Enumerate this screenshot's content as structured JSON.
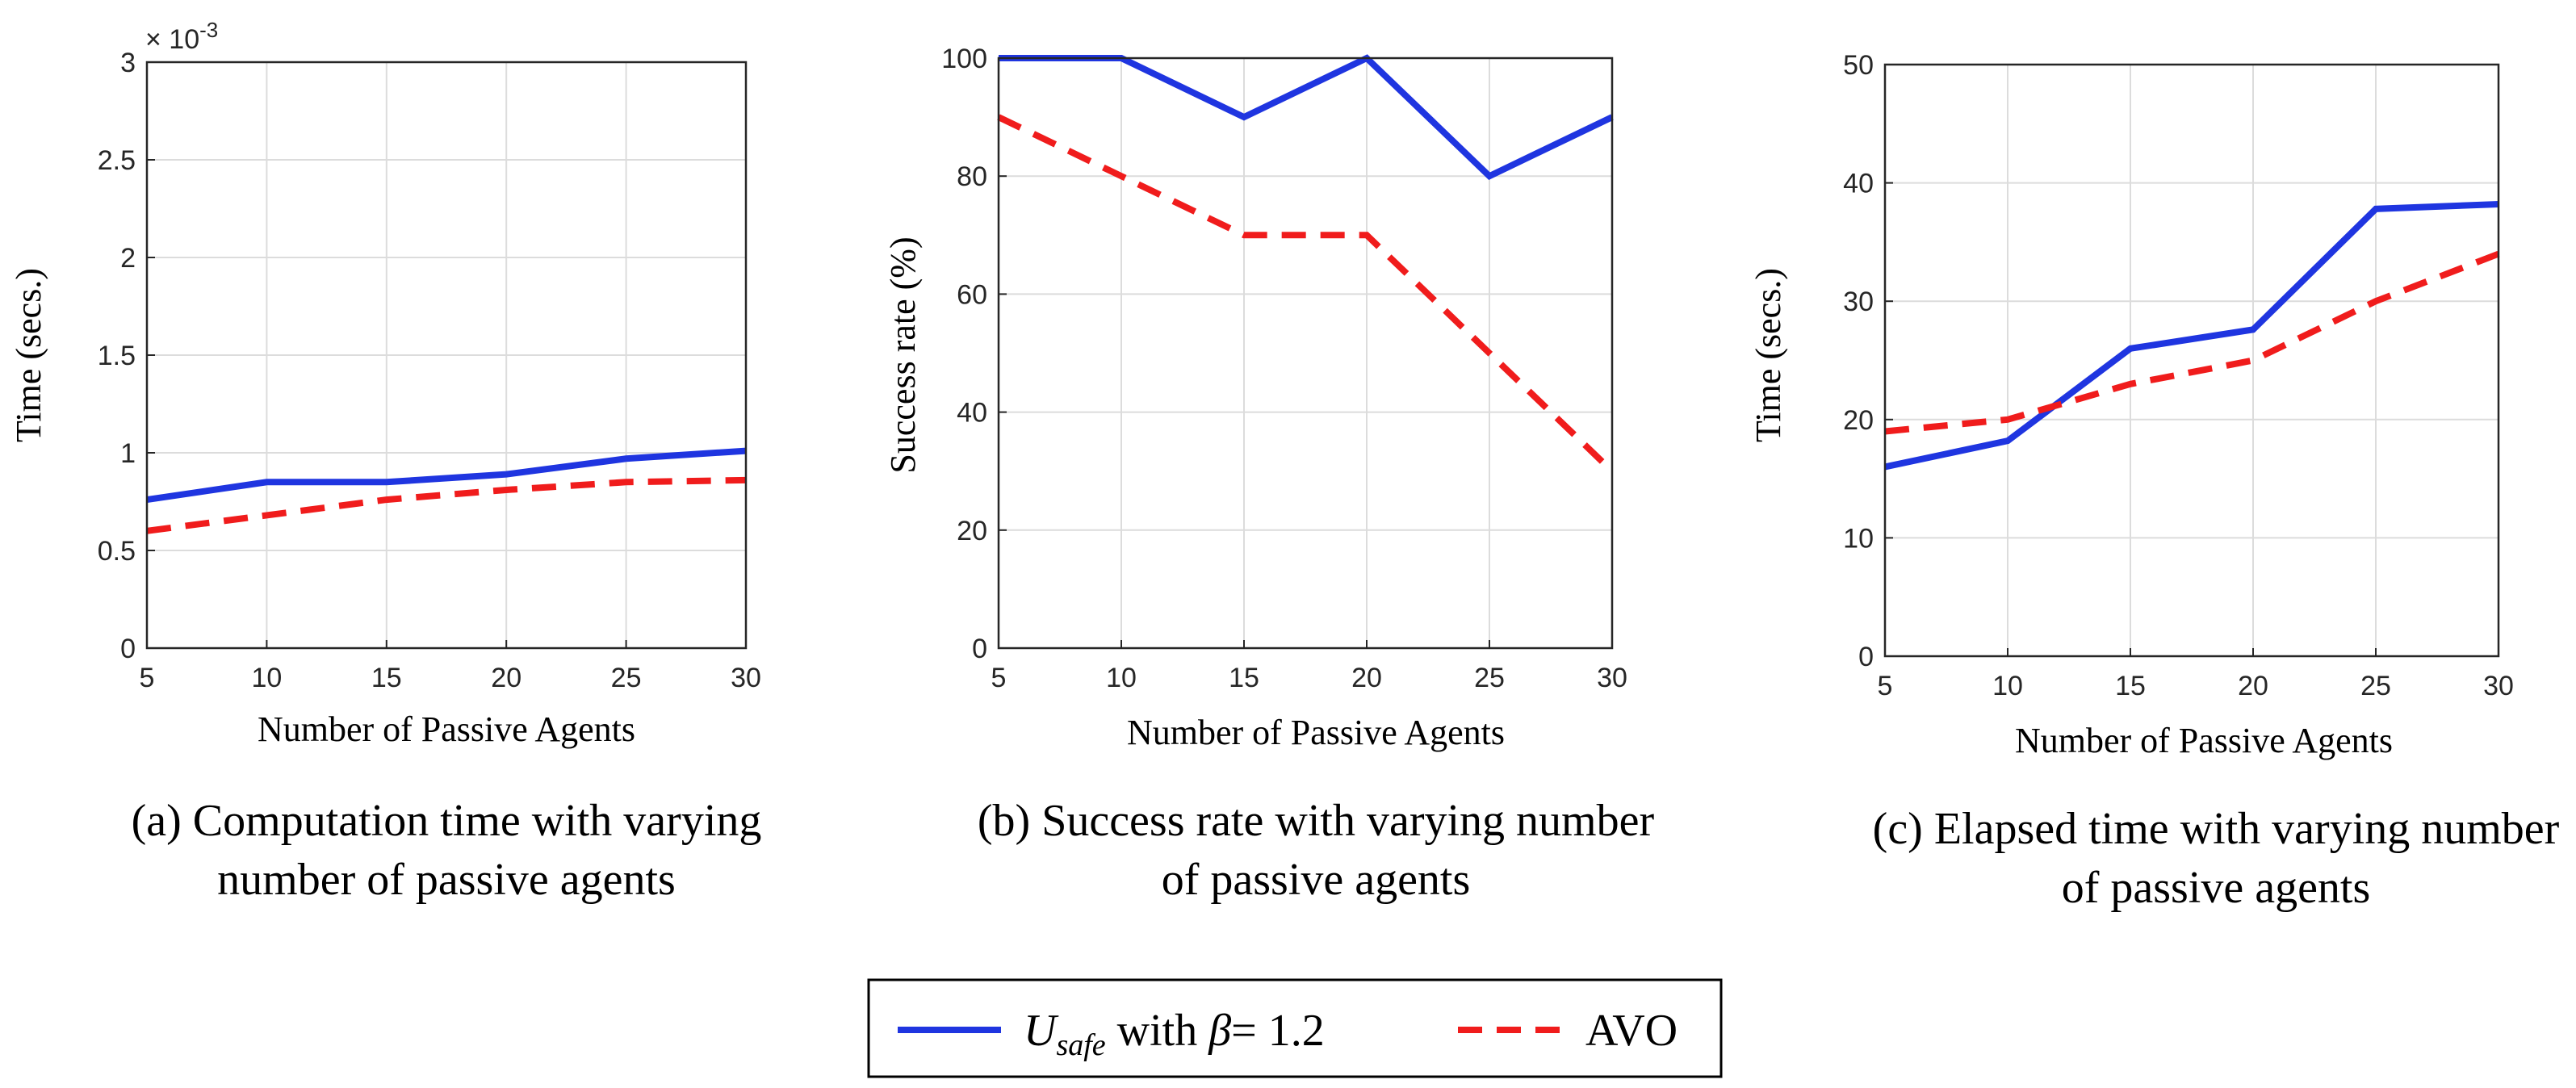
{
  "legend": {
    "series1_prefix": "U",
    "series1_sub": "safe",
    "series1_mid": " with ",
    "series1_beta": "β",
    "series1_value": "= 1.2",
    "series2_label": "AVO",
    "colors": {
      "u_safe": "#1f35e0",
      "avo": "#f01c1c"
    }
  },
  "chart_data": [
    {
      "type": "line",
      "x": [
        5,
        10,
        15,
        20,
        25,
        30
      ],
      "xticks": [
        "5",
        "10",
        "15",
        "20",
        "25",
        "30"
      ],
      "yticks": [
        "0",
        "0.5",
        "1",
        "1.5",
        "2",
        "2.5",
        "3"
      ],
      "ytick_values": [
        0,
        0.5,
        1,
        1.5,
        2,
        2.5,
        3
      ],
      "xlim": [
        5,
        30
      ],
      "ylim": [
        0,
        3
      ],
      "exponent_label": "× 10",
      "exponent_power": "-3",
      "xlabel": "Number of Passive Agents",
      "ylabel": "Time (secs.)",
      "caption": [
        "(a) Computation time with varying",
        "number of passive agents"
      ],
      "series": [
        {
          "name": "U_safe with β = 1.2",
          "values": [
            0.76,
            0.85,
            0.85,
            0.89,
            0.97,
            1.01
          ]
        },
        {
          "name": "AVO",
          "values": [
            0.6,
            0.68,
            0.76,
            0.81,
            0.85,
            0.86
          ]
        }
      ]
    },
    {
      "type": "line",
      "x": [
        5,
        10,
        15,
        20,
        25,
        30
      ],
      "xticks": [
        "5",
        "10",
        "15",
        "20",
        "25",
        "30"
      ],
      "yticks": [
        "0",
        "20",
        "40",
        "60",
        "80",
        "100"
      ],
      "ytick_values": [
        0,
        20,
        40,
        60,
        80,
        100
      ],
      "xlim": [
        5,
        30
      ],
      "ylim": [
        0,
        100
      ],
      "xlabel": "Number of Passive Agents",
      "ylabel": "Success rate (%)",
      "caption": [
        "(b) Success rate with varying number",
        "of passive agents"
      ],
      "series": [
        {
          "name": "U_safe with β = 1.2",
          "values": [
            100,
            100,
            90,
            100,
            80,
            90
          ]
        },
        {
          "name": "AVO",
          "values": [
            90,
            80,
            70,
            70,
            50,
            30
          ]
        }
      ]
    },
    {
      "type": "line",
      "x": [
        5,
        10,
        15,
        20,
        25,
        30
      ],
      "xticks": [
        "5",
        "10",
        "15",
        "20",
        "25",
        "30"
      ],
      "yticks": [
        "0",
        "10",
        "20",
        "30",
        "40",
        "50"
      ],
      "ytick_values": [
        0,
        10,
        20,
        30,
        40,
        50
      ],
      "xlim": [
        5,
        30
      ],
      "ylim": [
        0,
        50
      ],
      "xlabel": "Number of Passive Agents",
      "ylabel": "Time (secs.)",
      "caption": [
        "(c) Elapsed time with varying number",
        "of passive agents"
      ],
      "series": [
        {
          "name": "U_safe with β = 1.2",
          "values": [
            16,
            18.2,
            26,
            27.6,
            37.8,
            38.2
          ]
        },
        {
          "name": "AVO",
          "values": [
            19,
            20,
            23,
            25,
            30,
            34
          ]
        }
      ]
    }
  ]
}
